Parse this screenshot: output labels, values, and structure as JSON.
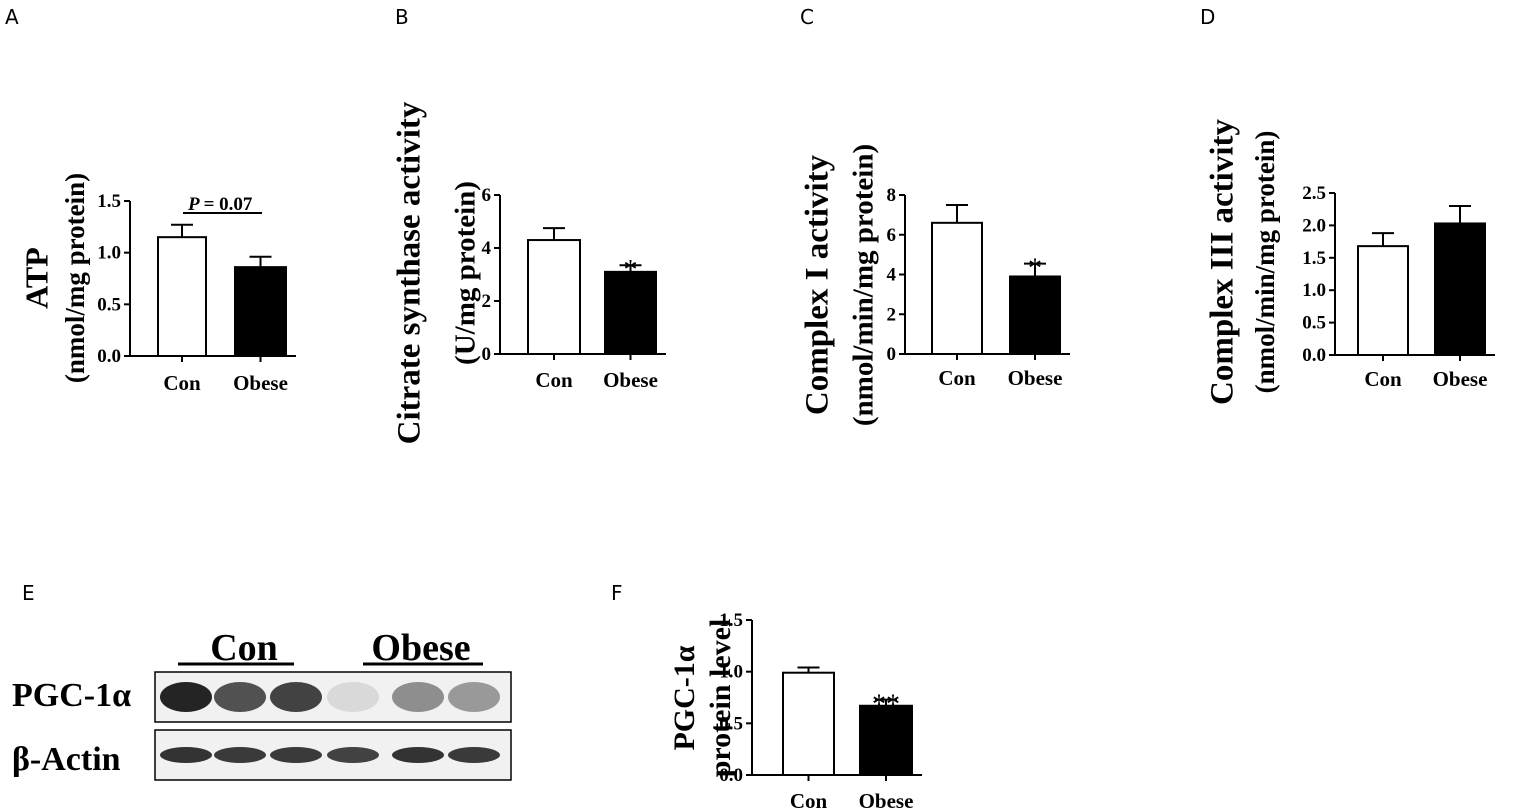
{
  "chart_data": [
    {
      "panel": "A",
      "type": "bar",
      "categories": [
        "Con",
        "Obese"
      ],
      "values": [
        1.15,
        0.86
      ],
      "errors": [
        0.12,
        0.1
      ],
      "ylabel": [
        "ATP",
        "(nmol/mg protein)"
      ],
      "ylim": [
        0,
        1.5
      ],
      "yticks": [
        "0.0",
        "0.5",
        "1.0",
        "1.5"
      ],
      "annotation": "= 0.07",
      "annotation_prefix": "P"
    },
    {
      "panel": "B",
      "type": "bar",
      "categories": [
        "Con",
        "Obese"
      ],
      "values": [
        4.3,
        3.1
      ],
      "errors": [
        0.45,
        0.25
      ],
      "ylabel": [
        "Citrate synthase activity",
        "(U/mg protein)"
      ],
      "ylim": [
        0,
        6
      ],
      "yticks": [
        "0",
        "2",
        "4",
        "6"
      ],
      "significance": [
        "",
        "*"
      ]
    },
    {
      "panel": "C",
      "type": "bar",
      "categories": [
        "Con",
        "Obese"
      ],
      "values": [
        6.6,
        3.9
      ],
      "errors": [
        0.9,
        0.65
      ],
      "ylabel": [
        "Complex I activity",
        "(nmol/min/mg protein)"
      ],
      "ylim": [
        0,
        8
      ],
      "yticks": [
        "0",
        "2",
        "4",
        "6",
        "8"
      ],
      "significance": [
        "",
        "*"
      ]
    },
    {
      "panel": "D",
      "type": "bar",
      "categories": [
        "Con",
        "Obese"
      ],
      "values": [
        1.68,
        2.03
      ],
      "errors": [
        0.2,
        0.27
      ],
      "ylabel": [
        "Complex III activity",
        "(nmol/min/mg protein)"
      ],
      "ylim": [
        0,
        2.5
      ],
      "yticks": [
        "0.0",
        "0.5",
        "1.0",
        "1.5",
        "2.0",
        "2.5"
      ]
    },
    {
      "panel": "F",
      "type": "bar",
      "categories": [
        "Con",
        "Obese"
      ],
      "values": [
        0.99,
        0.67
      ],
      "errors": [
        0.05,
        0.06
      ],
      "ylabel": [
        "PGC-1α",
        "protein level"
      ],
      "ylim": [
        0,
        1.5
      ],
      "yticks": [
        "0.0",
        "0.5",
        "1.0",
        "1.5"
      ],
      "significance": [
        "",
        "**"
      ]
    }
  ],
  "western_blot": {
    "panel": "E",
    "groups": [
      "Con",
      "Obese"
    ],
    "rows": [
      {
        "label": "PGC-1α",
        "intensities": [
          0.95,
          0.8,
          0.85,
          0.1,
          0.55,
          0.5
        ]
      },
      {
        "label": "β-Actin",
        "intensities": [
          0.9,
          0.88,
          0.88,
          0.85,
          0.9,
          0.88
        ]
      }
    ]
  },
  "colors": {
    "con_bar": "#ffffff",
    "obese_bar": "#000000",
    "ink": "#000000"
  }
}
